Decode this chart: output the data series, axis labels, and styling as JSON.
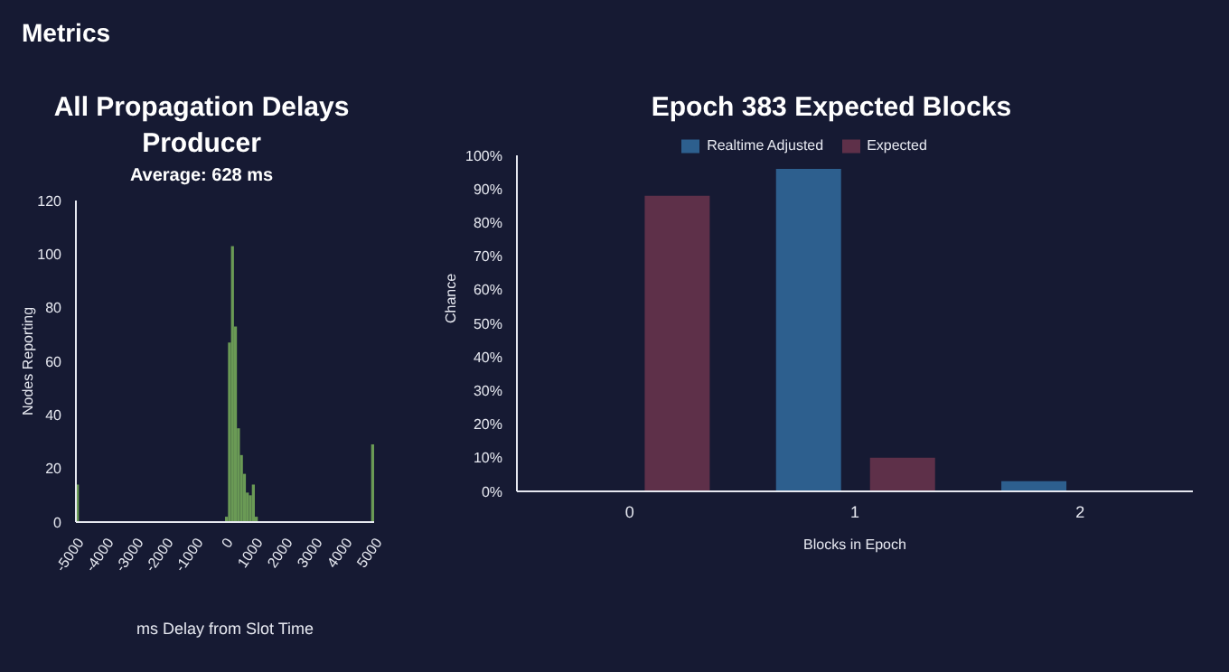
{
  "chart_data": [
    {
      "type": "histogram",
      "title": "All Propagation Delays Producer",
      "subtitle": "Average: 628 ms",
      "annotations": [
        "Metrics"
      ],
      "xlabel": "ms Delay from Slot Time",
      "ylabel": "Nodes Reporting",
      "color": "#6a9a55",
      "bins": [
        -5000,
        -4900,
        0,
        100,
        200,
        300,
        400,
        500,
        600,
        700,
        800,
        900,
        1000,
        1100,
        4900,
        5000
      ],
      "values": [
        14,
        0,
        2,
        67,
        103,
        73,
        35,
        25,
        18,
        11,
        10,
        14,
        2,
        0,
        29
      ],
      "xlim": [
        -5000,
        5000
      ],
      "xticks": [
        -5000,
        -4000,
        -3000,
        -2000,
        -1000,
        0,
        1000,
        2000,
        3000,
        4000,
        5000
      ],
      "ylim": [
        0,
        120
      ],
      "yticks": [
        0,
        20,
        40,
        60,
        80,
        100,
        120
      ],
      "grid": false
    },
    {
      "type": "bar",
      "title": "Epoch 383 Expected Blocks",
      "xlabel": "Blocks in Epoch",
      "ylabel": "Chance",
      "categories": [
        "0",
        "1",
        "2"
      ],
      "series": [
        {
          "name": "Realtime Adjusted",
          "color": "#2d5f8e",
          "values": [
            0,
            96,
            3
          ]
        },
        {
          "name": "Expected",
          "color": "#5e3049",
          "values": [
            88,
            10,
            0
          ]
        }
      ],
      "ylim": [
        0,
        100
      ],
      "yticks": [
        {
          "value": 0,
          "label": "0%"
        },
        {
          "value": 10,
          "label": "10%"
        },
        {
          "value": 20,
          "label": "20%"
        },
        {
          "value": 30,
          "label": "30%"
        },
        {
          "value": 40,
          "label": "40%"
        },
        {
          "value": 50,
          "label": "50%"
        },
        {
          "value": 60,
          "label": "60%"
        },
        {
          "value": 70,
          "label": "70%"
        },
        {
          "value": 80,
          "label": "80%"
        },
        {
          "value": 90,
          "label": "90%"
        },
        {
          "value": 100,
          "label": "100%"
        }
      ],
      "legend": "top",
      "grid": false
    }
  ]
}
